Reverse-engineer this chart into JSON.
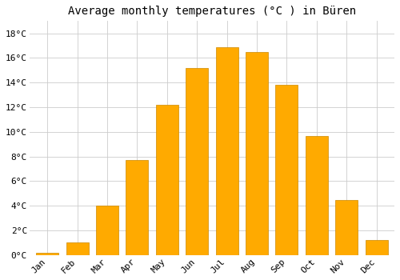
{
  "months": [
    "Jan",
    "Feb",
    "Mar",
    "Apr",
    "May",
    "Jun",
    "Jul",
    "Aug",
    "Sep",
    "Oct",
    "Nov",
    "Dec"
  ],
  "temperatures": [
    0.2,
    1.0,
    4.0,
    7.7,
    12.2,
    15.2,
    16.9,
    16.5,
    13.8,
    9.7,
    4.5,
    1.2
  ],
  "bar_color": "#FFAA00",
  "bar_edge_color": "#CC8800",
  "title": "Average monthly temperatures (°C ) in Büren",
  "ylim": [
    0,
    19
  ],
  "yticks": [
    0,
    2,
    4,
    6,
    8,
    10,
    12,
    14,
    16,
    18
  ],
  "ytick_labels": [
    "0°C",
    "2°C",
    "4°C",
    "6°C",
    "8°C",
    "10°C",
    "12°C",
    "14°C",
    "16°C",
    "18°C"
  ],
  "background_color": "#ffffff",
  "grid_color": "#cccccc",
  "title_fontsize": 10,
  "tick_fontsize": 8
}
